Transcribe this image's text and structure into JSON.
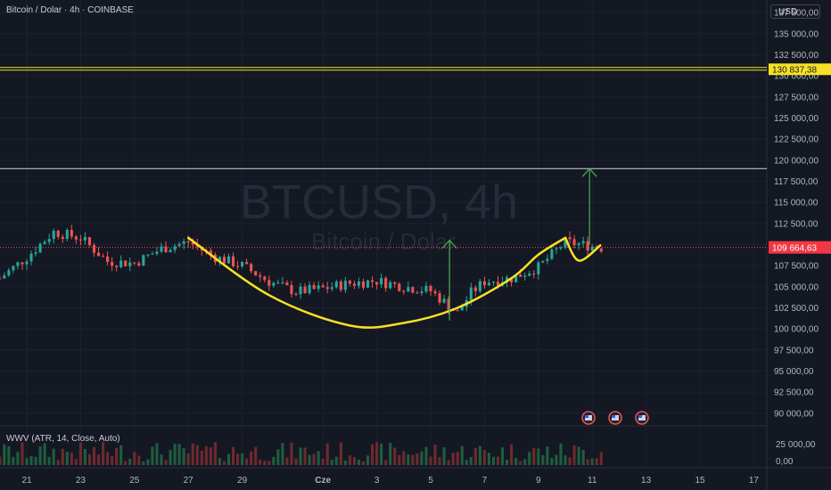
{
  "header": {
    "symbol_title": "Bitcoin / Dolar · 4h · COINBASE",
    "currency_button": "USD"
  },
  "watermark": {
    "symbol": "BTCUSD, 4h",
    "name": "Bitcoin / Dolar"
  },
  "indicator": {
    "label": "WWV (ATR, 14, Close, Auto)",
    "ticks": [
      "25 000,00",
      "0,00"
    ]
  },
  "price_axis": {
    "ticks": [
      "137 500,00",
      "135 000,00",
      "132 500,00",
      "130 000,00",
      "127 500,00",
      "125 000,00",
      "122 500,00",
      "120 000,00",
      "117 500,00",
      "115 000,00",
      "112 500,00",
      "110 000,00",
      "107 500,00",
      "105 000,00",
      "102 500,00",
      "100 000,00",
      "97 500,00",
      "95 000,00",
      "92 500,00",
      "90 000,00"
    ],
    "resistance_label": "130 837,38",
    "last_price_label": "109 664,63"
  },
  "time_axis": {
    "ticks": [
      "21",
      "23",
      "25",
      "27",
      "29",
      "Cze",
      "3",
      "5",
      "7",
      "9",
      "11",
      "13",
      "15",
      "17"
    ]
  },
  "colors": {
    "background": "#141823",
    "up": "#26a69a",
    "down": "#ef5350",
    "curve": "#f7e126",
    "arrow": "#4caf50",
    "resistance": "#f7e126"
  },
  "chart_data": {
    "type": "candlestick",
    "y_axis": {
      "unit": "USD",
      "range": [
        88500,
        139000
      ]
    },
    "x_axis": {
      "start": "May 20",
      "end": "Jun 18"
    },
    "horizontal_lines": [
      130837.38,
      119000,
      109664.63
    ],
    "last_price": 109664.63,
    "cup_curve_points": [
      {
        "x": "May 27",
        "y": 110800
      },
      {
        "x": "May 30",
        "y": 104000
      },
      {
        "x": "Jun 2",
        "y": 100400
      },
      {
        "x": "Jun 4",
        "y": 100700
      },
      {
        "x": "Jun 6",
        "y": 102500
      },
      {
        "x": "Jun 8",
        "y": 106000
      },
      {
        "x": "Jun 9",
        "y": 108800
      },
      {
        "x": "Jun 10",
        "y": 110800
      }
    ],
    "handle_curve_points": [
      {
        "x": "Jun 10",
        "y": 110800
      },
      {
        "x": "Jun 10.5",
        "y": 108100
      },
      {
        "x": "Jun 11.3",
        "y": 109900
      }
    ],
    "target_arrows": [
      {
        "x": "Jun 5.7",
        "from": 101000,
        "to": 110500
      },
      {
        "x": "Jun 10.9",
        "from": 110000,
        "to": 119000
      }
    ],
    "close_path": [
      [
        "May 20",
        106000
      ],
      [
        "May 21",
        108500
      ],
      [
        "May 22",
        111500
      ],
      [
        "May 23",
        110800
      ],
      [
        "May 24",
        108000
      ],
      [
        "May 25",
        107800
      ],
      [
        "May 26",
        109500
      ],
      [
        "May 27",
        110300
      ],
      [
        "May 28",
        108500
      ],
      [
        "May 29",
        107500
      ],
      [
        "May 30",
        105600
      ],
      [
        "May 31",
        104400
      ],
      [
        "Jun 1",
        104800
      ],
      [
        "Jun 2",
        105400
      ],
      [
        "Jun 3",
        105700
      ],
      [
        "Jun 4",
        105000
      ],
      [
        "Jun 5",
        104500
      ],
      [
        "Jun 6",
        101900
      ],
      [
        "Jun 6.5",
        104300
      ],
      [
        "Jun 7",
        105600
      ],
      [
        "Jun 8",
        106000
      ],
      [
        "Jun 9",
        107300
      ],
      [
        "Jun 10",
        110300
      ],
      [
        "Jun 11",
        109800
      ],
      [
        "Jun 11.4",
        109600
      ]
    ]
  }
}
